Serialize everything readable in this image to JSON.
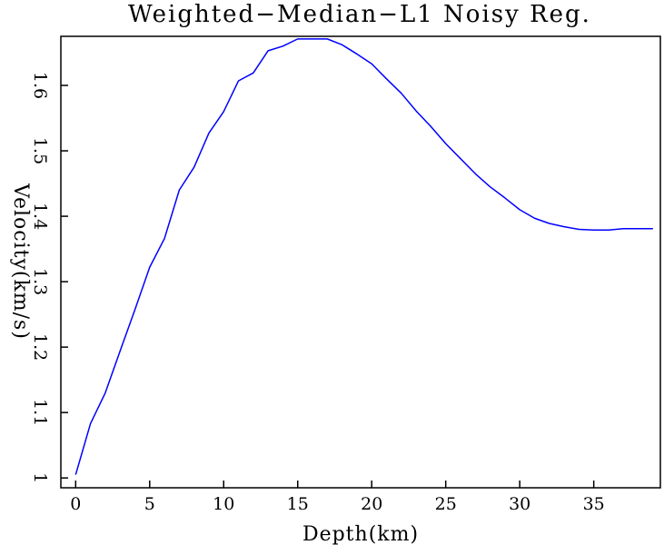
{
  "chart_data": {
    "type": "line",
    "title": "Weighted−Median−L1 Noisy Reg.",
    "xlabel": "Depth(km)",
    "ylabel": "Velocity(km/s)",
    "xlim": [
      -1,
      39.5
    ],
    "ylim": [
      0.985,
      1.675
    ],
    "x_ticks": [
      0,
      5,
      10,
      15,
      20,
      25,
      30,
      35
    ],
    "x_tick_labels": [
      "0",
      "5",
      "10",
      "15",
      "20",
      "25",
      "30",
      "35"
    ],
    "y_ticks": [
      1.0,
      1.1,
      1.2,
      1.3,
      1.4,
      1.5,
      1.6
    ],
    "y_tick_labels": [
      "1",
      "1.1",
      "1.2",
      "1.3",
      "1.4",
      "1.5",
      "1.6"
    ],
    "grid": false,
    "series": [
      {
        "color": "#0000ff",
        "x": [
          0,
          1,
          2,
          3,
          4,
          5,
          6,
          7,
          8,
          9,
          10,
          11,
          12,
          13,
          14,
          15,
          16,
          17,
          18,
          19,
          20,
          21,
          22,
          23,
          24,
          25,
          26,
          27,
          28,
          29,
          30,
          31,
          32,
          33,
          34,
          35,
          36,
          37,
          38,
          39
        ],
        "y": [
          1.005,
          1.083,
          1.13,
          1.194,
          1.257,
          1.322,
          1.366,
          1.44,
          1.475,
          1.527,
          1.56,
          1.607,
          1.619,
          1.653,
          1.66,
          1.671,
          1.671,
          1.671,
          1.662,
          1.648,
          1.633,
          1.61,
          1.588,
          1.561,
          1.537,
          1.511,
          1.488,
          1.465,
          1.445,
          1.428,
          1.41,
          1.397,
          1.389,
          1.384,
          1.38,
          1.379,
          1.379,
          1.381,
          1.381,
          1.381
        ]
      }
    ]
  }
}
